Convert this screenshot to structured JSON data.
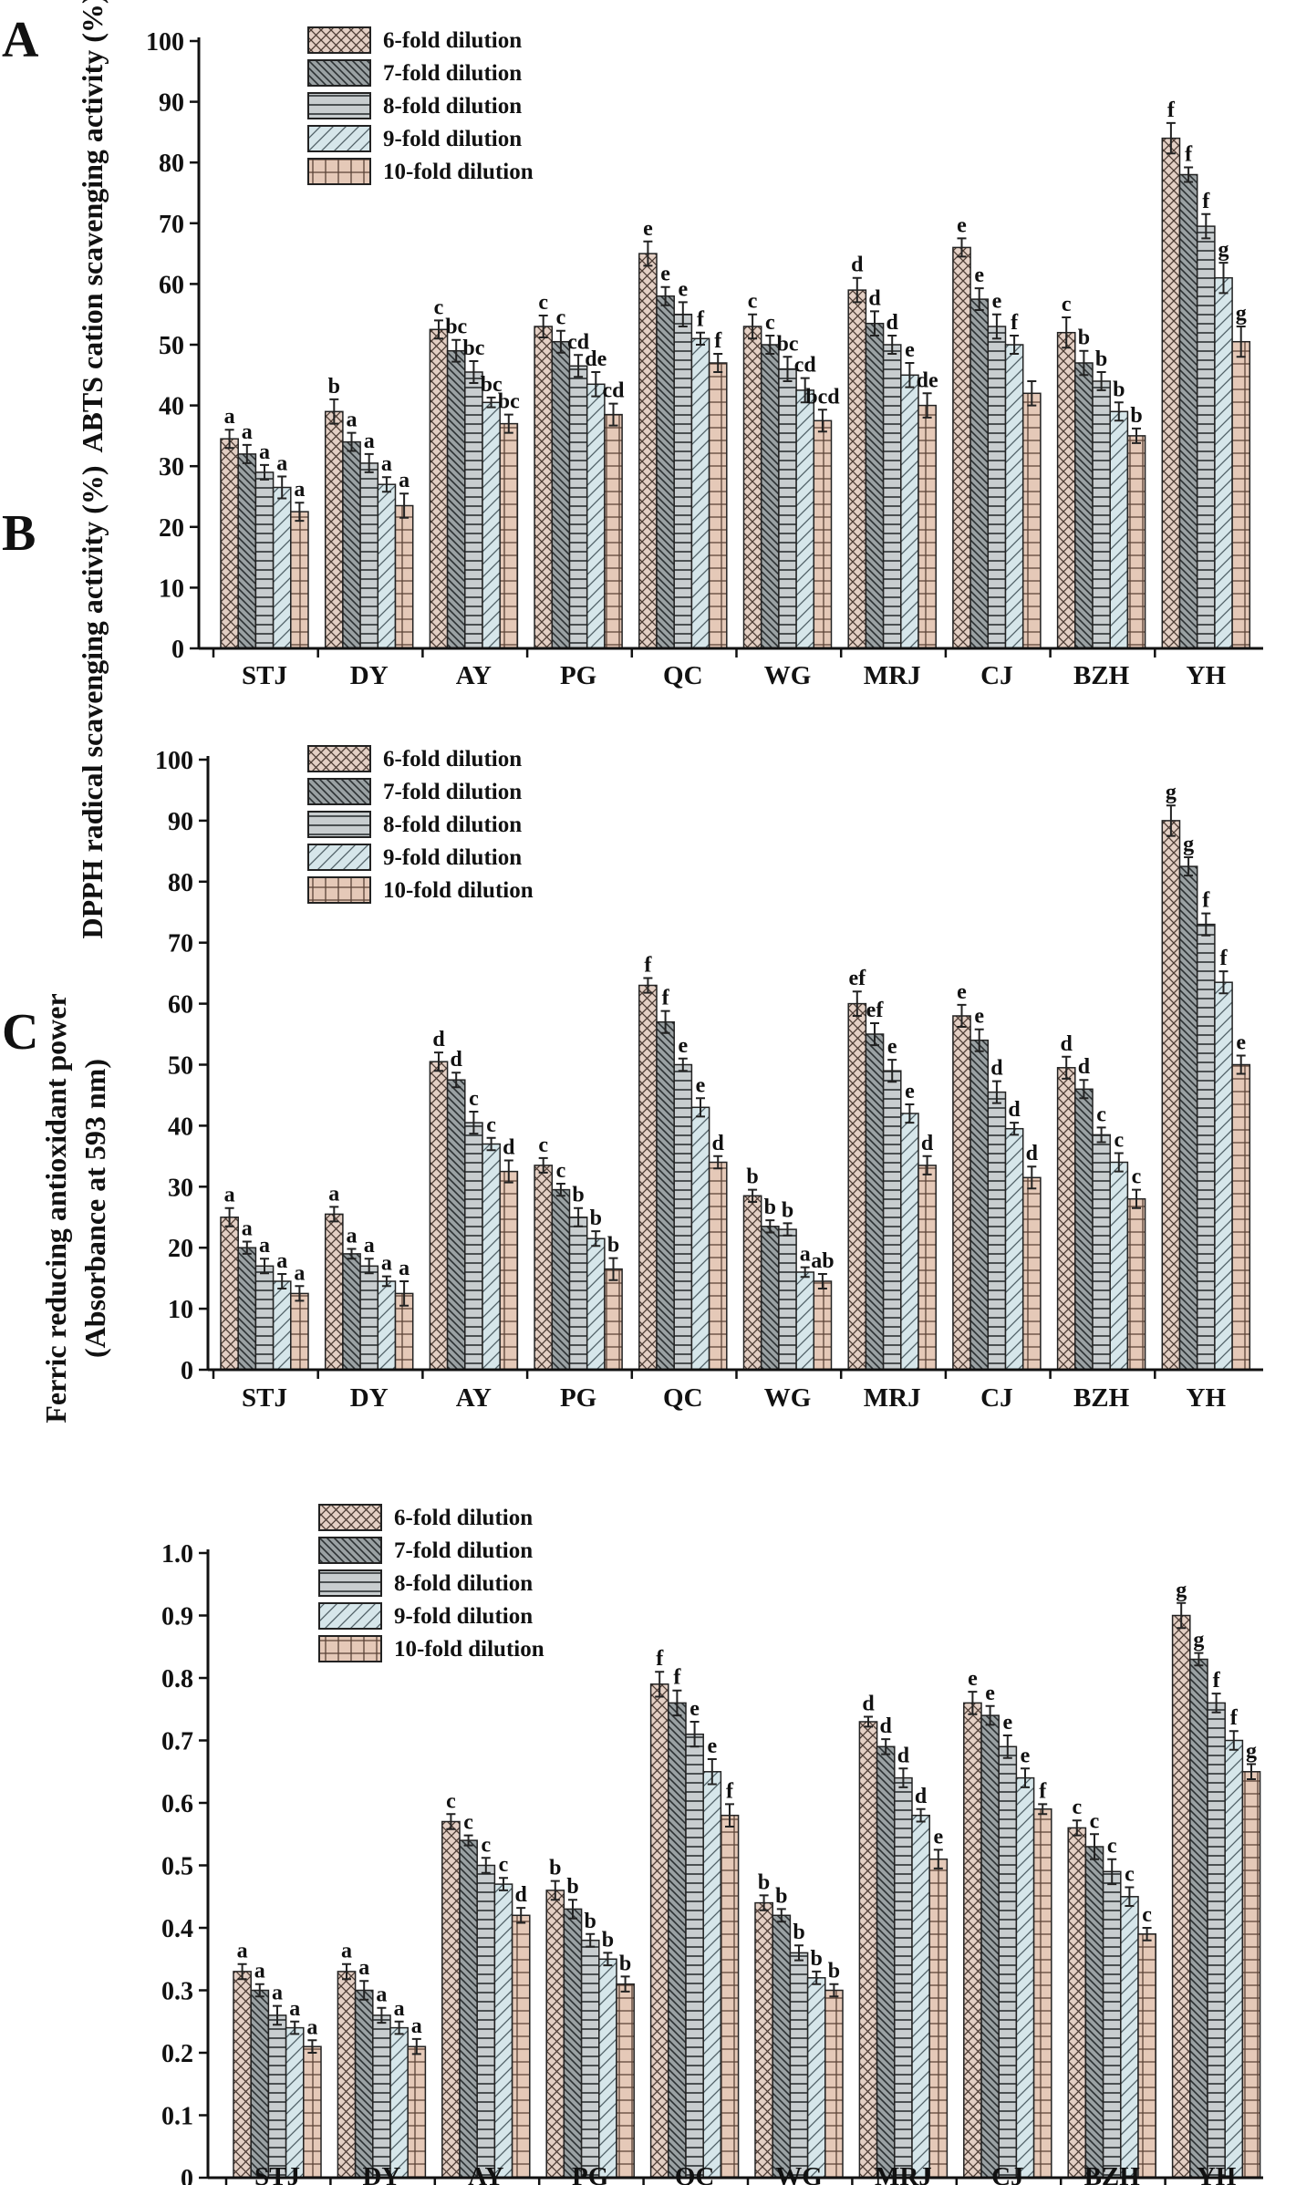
{
  "series_names": [
    "6-fold dilution",
    "7-fold dilution",
    "8-fold dilution",
    "9-fold dilution",
    "10-fold dilution"
  ],
  "series_colors": [
    "#e3cfc4",
    "#9aa1a3",
    "#c8cdcf",
    "#d6e6ea",
    "#e5c9b8"
  ],
  "chart_data": [
    {
      "type": "bar",
      "panel": "A",
      "ylabel": "ABTS cation scavenging activity (%)",
      "ylim": [
        0,
        100
      ],
      "yticks": [
        0,
        10,
        20,
        30,
        40,
        50,
        60,
        70,
        80,
        90,
        100
      ],
      "ytick_labels": [
        "0",
        "10",
        "20",
        "30",
        "40",
        "50",
        "60",
        "70",
        "80",
        "90",
        "100"
      ],
      "categories": [
        "STJ",
        "DY",
        "AY",
        "PG",
        "QC",
        "WG",
        "MRJ",
        "CJ",
        "BZH",
        "YH"
      ],
      "legend_names": [
        "6-fold dilution",
        "7-fold dilution",
        "8-fold dilution",
        "9-fold dilution",
        "10-fold dilution"
      ],
      "series": [
        {
          "name": "6-fold dilution",
          "values": [
            34.5,
            39,
            52.5,
            53,
            65,
            53,
            59,
            66,
            52,
            84
          ],
          "errors": [
            1.5,
            2,
            1.5,
            1.8,
            2,
            2,
            2,
            1.5,
            2.5,
            2.5
          ],
          "labels": [
            "a",
            "b",
            "c",
            "c",
            "e",
            "c",
            "d",
            "e",
            "c",
            "f"
          ]
        },
        {
          "name": "7-fold dilution",
          "values": [
            32,
            34,
            49,
            50.5,
            58,
            50,
            53.5,
            57.5,
            47,
            78
          ],
          "errors": [
            1.5,
            1.5,
            1.8,
            1.8,
            1.5,
            1.5,
            2,
            1.8,
            2,
            1.2
          ],
          "labels": [
            "a",
            "a",
            "bc",
            "c",
            "e",
            "c",
            "d",
            "e",
            "b",
            "f"
          ]
        },
        {
          "name": "8-fold dilution",
          "values": [
            29,
            30.5,
            45.5,
            46.5,
            55,
            46,
            50,
            53,
            44,
            69.5
          ],
          "errors": [
            1.2,
            1.5,
            1.8,
            1.8,
            2,
            2,
            1.5,
            2,
            1.5,
            2
          ],
          "labels": [
            "a",
            "a",
            "bc",
            "cd",
            "e",
            "bc",
            "d",
            "e",
            "b",
            "f"
          ]
        },
        {
          "name": "9-fold dilution",
          "values": [
            26.5,
            27,
            40.5,
            43.5,
            51,
            42.5,
            45,
            50,
            39,
            61
          ],
          "errors": [
            1.8,
            1.2,
            0.8,
            2,
            1,
            2,
            2,
            1.5,
            1.5,
            2.5
          ],
          "labels": [
            "a",
            "a",
            "bc",
            "de",
            "f",
            "cd",
            "e",
            "f",
            "b",
            "g"
          ]
        },
        {
          "name": "10-fold dilution",
          "values": [
            22.5,
            23.5,
            37,
            38.5,
            47,
            37.5,
            40,
            42,
            35,
            50.5
          ],
          "errors": [
            1.5,
            2,
            1.5,
            1.8,
            1.5,
            1.8,
            2,
            2,
            1.2,
            2.5
          ],
          "labels": [
            "a",
            "a",
            "bc",
            "cd",
            "f",
            "bcd",
            "de",
            "",
            "b",
            "g"
          ]
        }
      ]
    },
    {
      "type": "bar",
      "panel": "B",
      "ylabel": "DPPH radical scavenging activity (%)",
      "ylim": [
        0,
        100
      ],
      "yticks": [
        0,
        10,
        20,
        30,
        40,
        50,
        60,
        70,
        80,
        90,
        100
      ],
      "ytick_labels": [
        "0",
        "10",
        "20",
        "30",
        "40",
        "50",
        "60",
        "70",
        "80",
        "90",
        "100"
      ],
      "categories": [
        "STJ",
        "DY",
        "AY",
        "PG",
        "QC",
        "WG",
        "MRJ",
        "CJ",
        "BZH",
        "YH"
      ],
      "legend_names": [
        "6-fold dilution",
        "7-fold dilution",
        "8-fold dilution",
        "9-fold dilution",
        "10-fold dilution"
      ],
      "series": [
        {
          "name": "6-fold dilution",
          "values": [
            25,
            25.5,
            50.5,
            33.5,
            63,
            28.5,
            60,
            58,
            49.5,
            90
          ],
          "errors": [
            1.5,
            1.2,
            1.5,
            1.2,
            1.2,
            1,
            2,
            1.8,
            1.8,
            2.5
          ],
          "labels": [
            "a",
            "a",
            "d",
            "c",
            "f",
            "b",
            "ef",
            "e",
            "d",
            "g"
          ]
        },
        {
          "name": "7-fold dilution",
          "values": [
            20,
            19,
            47.5,
            29.5,
            57,
            23.5,
            55,
            54,
            46,
            82.5
          ],
          "errors": [
            1,
            0.8,
            1.2,
            1,
            1.8,
            1,
            1.8,
            1.8,
            1.5,
            1.5
          ],
          "labels": [
            "a",
            "a",
            "d",
            "c",
            "f",
            "b",
            "ef",
            "e",
            "d",
            "g"
          ]
        },
        {
          "name": "8-fold dilution",
          "values": [
            17,
            17,
            40.5,
            25,
            50,
            23,
            49,
            45.5,
            38.5,
            73
          ],
          "errors": [
            1.2,
            1.2,
            1.8,
            1.5,
            1,
            1,
            1.8,
            1.8,
            1.2,
            1.8
          ],
          "labels": [
            "a",
            "a",
            "c",
            "b",
            "e",
            "b",
            "e",
            "d",
            "c",
            "f"
          ]
        },
        {
          "name": "9-fold dilution",
          "values": [
            14.5,
            14.5,
            37,
            21.5,
            43,
            16,
            42,
            39.5,
            34,
            63.5
          ],
          "errors": [
            1.2,
            0.8,
            1,
            1.2,
            1.5,
            0.8,
            1.5,
            1,
            1.5,
            1.8
          ],
          "labels": [
            "a",
            "a",
            "c",
            "b",
            "e",
            "a",
            "e",
            "d",
            "c",
            "f"
          ]
        },
        {
          "name": "10-fold dilution",
          "values": [
            12.5,
            12.5,
            32.5,
            16.5,
            34,
            14.5,
            33.5,
            31.5,
            28,
            50
          ],
          "errors": [
            1.2,
            2,
            1.8,
            1.8,
            1,
            1.2,
            1.5,
            1.8,
            1.5,
            1.5
          ],
          "labels": [
            "a",
            "a",
            "d",
            "b",
            "d",
            "ab",
            "d",
            "d",
            "c",
            "e"
          ]
        }
      ]
    },
    {
      "type": "bar",
      "panel": "C",
      "ylabel": "Ferric reducing antioxidant power",
      "ylabel2": "(Absorbance at 593 nm)",
      "ylim": [
        0,
        1.0
      ],
      "yticks": [
        0,
        0.1,
        0.2,
        0.3,
        0.4,
        0.5,
        0.6,
        0.7,
        0.8,
        0.9,
        1.0
      ],
      "ytick_labels": [
        "0",
        "0.1",
        "0.2",
        "0.3",
        "0.4",
        "0.5",
        "0.6",
        "0.7",
        "0.8",
        "0.9",
        "1.0"
      ],
      "categories": [
        "STJ",
        "DY",
        "AY",
        "PG",
        "QC",
        "WG",
        "MRJ",
        "CJ",
        "BZH",
        "YH"
      ],
      "legend_names": [
        "6-fold dilution",
        "7-fold dilution",
        "8-fold dilution",
        "9-fold dilution",
        "10-fold dilution"
      ],
      "series": [
        {
          "name": "6-fold dilution",
          "values": [
            0.33,
            0.33,
            0.57,
            0.46,
            0.79,
            0.44,
            0.73,
            0.76,
            0.56,
            0.9
          ],
          "errors": [
            0.012,
            0.012,
            0.012,
            0.015,
            0.02,
            0.012,
            0.008,
            0.018,
            0.012,
            0.02
          ],
          "labels": [
            "a",
            "a",
            "c",
            "b",
            "f",
            "b",
            "d",
            "e",
            "c",
            "g"
          ]
        },
        {
          "name": "7-fold dilution",
          "values": [
            0.3,
            0.3,
            0.54,
            0.43,
            0.76,
            0.42,
            0.69,
            0.74,
            0.53,
            0.83
          ],
          "errors": [
            0.01,
            0.015,
            0.008,
            0.015,
            0.02,
            0.01,
            0.012,
            0.015,
            0.02,
            0.01
          ],
          "labels": [
            "a",
            "a",
            "c",
            "b",
            "f",
            "b",
            "d",
            "e",
            "c",
            "g"
          ]
        },
        {
          "name": "8-fold dilution",
          "values": [
            0.26,
            0.26,
            0.5,
            0.38,
            0.71,
            0.36,
            0.64,
            0.69,
            0.49,
            0.76
          ],
          "errors": [
            0.015,
            0.012,
            0.012,
            0.01,
            0.02,
            0.012,
            0.015,
            0.018,
            0.02,
            0.015
          ],
          "labels": [
            "a",
            "a",
            "c",
            "b",
            "e",
            "b",
            "d",
            "e",
            "c",
            "f"
          ]
        },
        {
          "name": "9-fold dilution",
          "values": [
            0.24,
            0.24,
            0.47,
            0.35,
            0.65,
            0.32,
            0.58,
            0.64,
            0.45,
            0.7
          ],
          "errors": [
            0.01,
            0.01,
            0.01,
            0.01,
            0.02,
            0.01,
            0.01,
            0.015,
            0.015,
            0.015
          ],
          "labels": [
            "a",
            "a",
            "c",
            "b",
            "e",
            "b",
            "d",
            "e",
            "c",
            "f"
          ]
        },
        {
          "name": "10-fold dilution",
          "values": [
            0.21,
            0.21,
            0.42,
            0.31,
            0.58,
            0.3,
            0.51,
            0.59,
            0.39,
            0.65
          ],
          "errors": [
            0.01,
            0.012,
            0.012,
            0.012,
            0.018,
            0.01,
            0.015,
            0.008,
            0.01,
            0.012
          ],
          "labels": [
            "a",
            "a",
            "d",
            "b",
            "f",
            "b",
            "e",
            "f",
            "c",
            "g"
          ]
        }
      ]
    }
  ]
}
